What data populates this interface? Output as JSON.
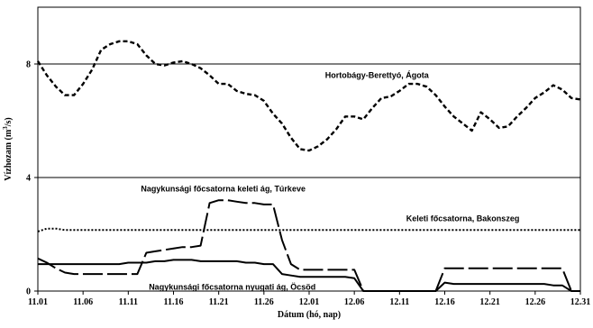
{
  "chart_data": {
    "type": "line",
    "title": "",
    "xlabel": "Dátum (hó, nap)",
    "ylabel": "Vízhozam (m3/s)",
    "ylabel_text": "Vízhozam (m",
    "ylabel_sup": "3",
    "ylabel_tail": "/s)",
    "ylim": [
      0,
      10
    ],
    "yticks": [
      0,
      4,
      8
    ],
    "xlim": [
      1,
      91
    ],
    "x_ticks": [
      {
        "x": 1,
        "label": "11.01"
      },
      {
        "x": 6,
        "label": "11.06"
      },
      {
        "x": 11,
        "label": "11.11"
      },
      {
        "x": 16,
        "label": "11.16"
      },
      {
        "x": 21,
        "label": "11.21"
      },
      {
        "x": 26,
        "label": "11.26"
      },
      {
        "x": 31,
        "label": "12.01"
      },
      {
        "x": 36,
        "label": "12.06"
      },
      {
        "x": 41,
        "label": "12.11"
      },
      {
        "x": 46,
        "label": "12.16"
      },
      {
        "x": 51,
        "label": "12.21"
      },
      {
        "x": 56,
        "label": "12.26"
      },
      {
        "x": 61,
        "label": "12.31"
      }
    ],
    "horizontal_lines_y": [
      4,
      8
    ],
    "legend": "none",
    "series": [
      {
        "name": "Hortobágy-Berettyó, Ágota",
        "style": "short-dash",
        "x": [
          1,
          2,
          3,
          4,
          5,
          6,
          7,
          8,
          9,
          10,
          11,
          12,
          13,
          14,
          15,
          16,
          17,
          18,
          19,
          20,
          21,
          22,
          23,
          24,
          25,
          26,
          27,
          28,
          29,
          30,
          31,
          32,
          33,
          34,
          35,
          36,
          37,
          38,
          39,
          40,
          41,
          42,
          43,
          44,
          45,
          46,
          47,
          48,
          49,
          50,
          51,
          52,
          53,
          54,
          55,
          56,
          57,
          58,
          59,
          60,
          61
        ],
        "y": [
          8.1,
          7.6,
          7.2,
          6.9,
          6.9,
          7.3,
          7.8,
          8.5,
          8.7,
          8.8,
          8.8,
          8.7,
          8.3,
          8.0,
          7.95,
          8.05,
          8.1,
          8.0,
          7.85,
          7.6,
          7.3,
          7.3,
          7.05,
          6.95,
          6.9,
          6.7,
          6.25,
          5.9,
          5.4,
          5.0,
          4.95,
          5.1,
          5.35,
          5.7,
          6.15,
          6.15,
          6.05,
          6.45,
          6.8,
          6.85,
          7.05,
          7.3,
          7.3,
          7.2,
          6.9,
          6.5,
          6.15,
          5.9,
          5.65,
          6.3,
          6.05,
          5.75,
          5.8,
          6.15,
          6.45,
          6.8,
          7.0,
          7.25,
          7.1,
          6.8,
          6.75
        ]
      },
      {
        "name": "Nagykunsági főcsatorna keleti ág, Túrkeve",
        "style": "long-dash",
        "x": [
          1,
          2,
          3,
          4,
          5,
          6,
          7,
          8,
          9,
          10,
          11,
          12,
          13,
          14,
          15,
          16,
          17,
          18,
          19,
          20,
          21,
          22,
          23,
          24,
          25,
          26,
          27,
          28,
          29,
          30,
          31,
          32,
          33,
          34,
          35,
          36,
          37,
          38,
          39,
          40,
          41,
          42,
          43,
          44,
          45,
          46,
          47,
          48,
          49,
          50,
          51,
          52,
          53,
          54,
          55,
          56,
          57,
          58,
          59,
          60,
          61
        ],
        "y": [
          1.15,
          1.0,
          0.8,
          0.65,
          0.6,
          0.6,
          0.6,
          0.6,
          0.6,
          0.6,
          0.6,
          0.6,
          1.35,
          1.4,
          1.45,
          1.5,
          1.55,
          1.55,
          1.6,
          3.1,
          3.2,
          3.2,
          3.15,
          3.1,
          3.1,
          3.05,
          3.05,
          1.8,
          0.95,
          0.75,
          0.75,
          0.75,
          0.75,
          0.75,
          0.75,
          0.75,
          0.0,
          0.0,
          0.0,
          0.0,
          0.0,
          0.0,
          0.0,
          0.0,
          0.0,
          0.8,
          0.8,
          0.8,
          0.8,
          0.8,
          0.8,
          0.8,
          0.8,
          0.8,
          0.8,
          0.8,
          0.8,
          0.8,
          0.8,
          0.0,
          0.0
        ]
      },
      {
        "name": "Keleti főcsatorna, Bakonszeg",
        "style": "dotted",
        "x": [
          1,
          2,
          3,
          4,
          5,
          6,
          7,
          8,
          9,
          10,
          11,
          12,
          13,
          14,
          15,
          16,
          17,
          18,
          19,
          20,
          21,
          22,
          23,
          24,
          25,
          26,
          27,
          28,
          29,
          30,
          31,
          32,
          33,
          34,
          35,
          36,
          37,
          38,
          39,
          40,
          41,
          42,
          43,
          44,
          45,
          46,
          47,
          48,
          49,
          50,
          51,
          52,
          53,
          54,
          55,
          56,
          57,
          58,
          59,
          60,
          61
        ],
        "y": [
          2.1,
          2.2,
          2.2,
          2.15,
          2.15,
          2.15,
          2.15,
          2.15,
          2.15,
          2.15,
          2.15,
          2.15,
          2.15,
          2.15,
          2.15,
          2.15,
          2.15,
          2.15,
          2.15,
          2.15,
          2.15,
          2.15,
          2.15,
          2.15,
          2.15,
          2.15,
          2.15,
          2.15,
          2.15,
          2.15,
          2.15,
          2.15,
          2.15,
          2.15,
          2.15,
          2.15,
          2.15,
          2.15,
          2.15,
          2.15,
          2.15,
          2.15,
          2.15,
          2.15,
          2.15,
          2.15,
          2.15,
          2.15,
          2.15,
          2.15,
          2.15,
          2.15,
          2.15,
          2.15,
          2.15,
          2.15,
          2.15,
          2.15,
          2.15,
          2.15,
          2.15
        ]
      },
      {
        "name": "Nagykunsági főcsatorna nyugati ág, Öcsöd",
        "style": "solid",
        "x": [
          1,
          2,
          3,
          4,
          5,
          6,
          7,
          8,
          9,
          10,
          11,
          12,
          13,
          14,
          15,
          16,
          17,
          18,
          19,
          20,
          21,
          22,
          23,
          24,
          25,
          26,
          27,
          28,
          29,
          30,
          31,
          32,
          33,
          34,
          35,
          36,
          37,
          38,
          39,
          40,
          41,
          42,
          43,
          44,
          45,
          46,
          47,
          48,
          49,
          50,
          51,
          52,
          53,
          54,
          55,
          56,
          57,
          58,
          59,
          60,
          61
        ],
        "y": [
          0.95,
          0.95,
          0.95,
          0.95,
          0.95,
          0.95,
          0.95,
          0.95,
          0.95,
          0.95,
          1.0,
          1.0,
          1.0,
          1.05,
          1.05,
          1.1,
          1.1,
          1.1,
          1.05,
          1.05,
          1.05,
          1.05,
          1.05,
          1.0,
          1.0,
          0.95,
          0.95,
          0.6,
          0.55,
          0.5,
          0.5,
          0.5,
          0.5,
          0.5,
          0.5,
          0.45,
          0.0,
          0.0,
          0.0,
          0.0,
          0.0,
          0.0,
          0.0,
          0.0,
          0.0,
          0.3,
          0.25,
          0.25,
          0.25,
          0.25,
          0.25,
          0.25,
          0.25,
          0.25,
          0.25,
          0.25,
          0.25,
          0.2,
          0.2,
          0.0,
          0.0
        ]
      }
    ],
    "annotations": [
      {
        "text": "Hortobágy-Berettyó, Ágota",
        "x": 38.5,
        "y": 7.6,
        "anchor": "middle"
      },
      {
        "text": "Nagykunsági főcsatorna keleti ág, Túrkeve",
        "x": 21.5,
        "y": 3.6,
        "anchor": "middle"
      },
      {
        "text": "Keleti főcsatorna, Bakonszeg",
        "x": 48,
        "y": 2.55,
        "anchor": "middle"
      },
      {
        "text": "Nagykunsági főcsatorna nyugati ág, Öcsöd",
        "x": 22.5,
        "y": 0.15,
        "anchor": "middle"
      }
    ]
  }
}
